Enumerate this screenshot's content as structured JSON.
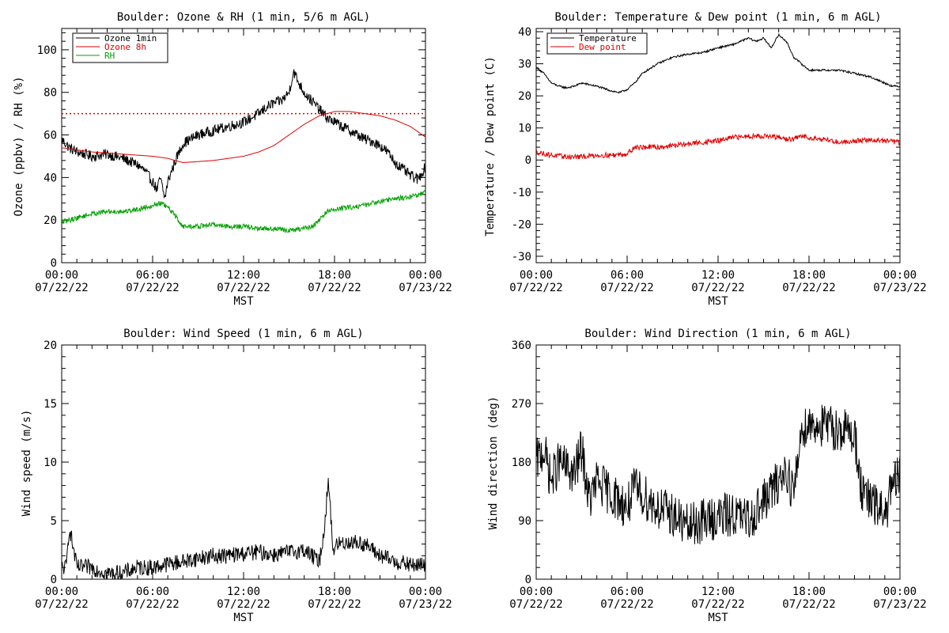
{
  "chart_data": [
    {
      "id": "ozone",
      "type": "line",
      "title": "Boulder: Ozone & RH (1 min, 5/6 m AGL)",
      "ylabel": "Ozone (ppbv) / RH (%)",
      "xlabel": "MST",
      "xlim": [
        0,
        24
      ],
      "ylim": [
        0,
        110
      ],
      "yticks": [
        0,
        20,
        40,
        60,
        80,
        100
      ],
      "xticks": [
        {
          "time": "00:00",
          "date": "07/22/22"
        },
        {
          "time": "06:00",
          "date": "07/22/22"
        },
        {
          "time": "12:00",
          "date": "07/22/22"
        },
        {
          "time": "18:00",
          "date": "07/22/22"
        },
        {
          "time": "00:00",
          "date": "07/23/22"
        }
      ],
      "reference_line": {
        "y": 70,
        "color": "#e00000",
        "style": "dotted"
      },
      "legend": {
        "placement": "top-left",
        "entries": [
          "Ozone 1min",
          "Ozone 8h",
          "RH"
        ]
      },
      "series": [
        {
          "name": "Ozone 1min",
          "color": "#000000",
          "noise": 2.5,
          "x": [
            0,
            0.5,
            1,
            2,
            3,
            4,
            5,
            5.5,
            6,
            6.3,
            6.5,
            6.8,
            7,
            7.5,
            8,
            9,
            10,
            11,
            12,
            12.5,
            13,
            13.5,
            14,
            14.5,
            15,
            15.3,
            15.6,
            16,
            16.5,
            17,
            17.5,
            18,
            19,
            20,
            20.5,
            21,
            21.5,
            22,
            22.5,
            23,
            23.5,
            24
          ],
          "y": [
            58,
            54,
            52,
            50,
            51,
            49,
            46,
            43,
            38,
            34,
            40,
            30,
            38,
            48,
            56,
            60,
            62,
            64,
            66,
            68,
            70,
            73,
            75,
            76,
            80,
            90,
            85,
            80,
            76,
            72,
            68,
            66,
            62,
            58,
            57,
            55,
            52,
            47,
            44,
            41,
            39,
            45
          ]
        },
        {
          "name": "Ozone 8h",
          "color": "#e00000",
          "noise": 0,
          "x": [
            0,
            2,
            4,
            6,
            7,
            8,
            9,
            10,
            11,
            12,
            13,
            14,
            15,
            16,
            17,
            18,
            19,
            20,
            21,
            22,
            23,
            24
          ],
          "y": [
            54,
            52,
            51,
            50,
            49,
            47,
            47.5,
            48,
            49,
            50,
            52,
            55,
            60,
            65,
            69,
            71,
            71,
            70,
            69,
            67,
            64,
            59
          ]
        },
        {
          "name": "RH",
          "color": "#00a000",
          "noise": 1.2,
          "x": [
            0,
            1,
            2,
            3,
            4,
            5,
            6,
            6.5,
            7,
            7.5,
            8,
            9,
            10,
            11,
            12,
            13,
            14,
            15,
            16,
            16.5,
            17,
            17.5,
            18,
            19,
            20,
            21,
            22,
            23,
            24
          ],
          "y": [
            19,
            21,
            23,
            24,
            24,
            25,
            27,
            28,
            26,
            22,
            17,
            17,
            18,
            17,
            17,
            16,
            16,
            15,
            16,
            17,
            20,
            24,
            25,
            26,
            27,
            29,
            30,
            31,
            33
          ]
        }
      ]
    },
    {
      "id": "temp",
      "type": "line",
      "title": "Boulder: Temperature & Dew point (1 min, 6 m AGL)",
      "ylabel": "Temperature / Dew point (C)",
      "xlabel": "MST",
      "xlim": [
        0,
        24
      ],
      "ylim": [
        -32,
        41
      ],
      "yticks": [
        -30,
        -20,
        -10,
        0,
        10,
        20,
        30,
        40
      ],
      "xticks": [
        {
          "time": "00:00",
          "date": "07/22/22"
        },
        {
          "time": "06:00",
          "date": "07/22/22"
        },
        {
          "time": "12:00",
          "date": "07/22/22"
        },
        {
          "time": "18:00",
          "date": "07/22/22"
        },
        {
          "time": "00:00",
          "date": "07/23/22"
        }
      ],
      "legend": {
        "placement": "top-left",
        "entries": [
          "Temperature",
          "Dew point"
        ]
      },
      "series": [
        {
          "name": "Temperature",
          "color": "#000000",
          "noise": 0.3,
          "x": [
            0,
            0.5,
            1,
            1.5,
            2,
            2.5,
            3,
            4,
            5,
            5.5,
            6,
            6.5,
            7,
            8,
            9,
            10,
            11,
            12,
            13,
            14,
            14.5,
            15,
            15.5,
            16,
            16.5,
            17,
            17.5,
            18,
            19,
            20,
            21,
            22,
            23,
            23.5,
            24
          ],
          "y": [
            29,
            27,
            24,
            23,
            22.5,
            23,
            24,
            23,
            21.5,
            21,
            22,
            24,
            27,
            30,
            32,
            33,
            33.5,
            35,
            36,
            38,
            37,
            38,
            35,
            39,
            37,
            32,
            30,
            28,
            28,
            28,
            27,
            26,
            24,
            23,
            23
          ]
        },
        {
          "name": "Dew point",
          "color": "#e00000",
          "noise": 0.8,
          "x": [
            0,
            1,
            2,
            3,
            4,
            5,
            6,
            6.5,
            7,
            8,
            9,
            10,
            11,
            12,
            13,
            14,
            15,
            16,
            16.5,
            17,
            17.5,
            18,
            19,
            20,
            21,
            22,
            23,
            24
          ],
          "y": [
            2.5,
            1.5,
            1,
            1,
            1.5,
            1.5,
            2,
            4,
            4,
            4,
            4.5,
            5,
            5.5,
            6,
            7,
            7.5,
            7.5,
            7,
            6.5,
            6.5,
            7.5,
            7,
            6.5,
            5.5,
            6,
            6.2,
            6,
            5.5
          ]
        }
      ]
    },
    {
      "id": "wspd",
      "type": "line",
      "title": "Boulder: Wind Speed (1 min, 6 m AGL)",
      "ylabel": "Wind speed (m/s)",
      "xlabel": "MST",
      "xlim": [
        0,
        24
      ],
      "ylim": [
        0,
        20
      ],
      "yticks": [
        0,
        5,
        10,
        15,
        20
      ],
      "xticks": [
        {
          "time": "00:00",
          "date": "07/22/22"
        },
        {
          "time": "06:00",
          "date": "07/22/22"
        },
        {
          "time": "12:00",
          "date": "07/22/22"
        },
        {
          "time": "18:00",
          "date": "07/22/22"
        },
        {
          "time": "00:00",
          "date": "07/23/22"
        }
      ],
      "series": [
        {
          "name": "Wind speed",
          "color": "#000000",
          "noise": 0.7,
          "x": [
            0,
            0.3,
            0.5,
            1,
            2,
            3,
            4,
            5,
            6,
            7,
            8,
            9,
            10,
            11,
            12,
            13,
            14,
            15,
            16,
            17,
            17.3,
            17.6,
            17.9,
            18.2,
            19,
            20,
            20.5,
            21,
            22,
            23,
            24
          ],
          "y": [
            1,
            1,
            4.5,
            1,
            1,
            0.5,
            0.5,
            1,
            1,
            1.3,
            1.5,
            1.8,
            2,
            2,
            2.2,
            2.3,
            2.1,
            2.3,
            2.5,
            1.5,
            4,
            8.5,
            2.5,
            3,
            3.2,
            3,
            2.5,
            2,
            1.5,
            1.2,
            1.2
          ]
        }
      ]
    },
    {
      "id": "wdir",
      "type": "line",
      "title": "Boulder: Wind Direction (1 min, 6 m AGL)",
      "ylabel": "Wind direction (deg)",
      "xlabel": "MST",
      "xlim": [
        0,
        24
      ],
      "ylim": [
        0,
        360
      ],
      "yticks": [
        0,
        90,
        180,
        270,
        360
      ],
      "xticks": [
        {
          "time": "00:00",
          "date": "07/22/22"
        },
        {
          "time": "06:00",
          "date": "07/22/22"
        },
        {
          "time": "12:00",
          "date": "07/22/22"
        },
        {
          "time": "18:00",
          "date": "07/22/22"
        },
        {
          "time": "00:00",
          "date": "07/23/22"
        }
      ],
      "series": [
        {
          "name": "Wind direction",
          "color": "#000000",
          "noise": 35,
          "x": [
            0,
            0.5,
            1,
            1.5,
            2,
            2.5,
            3,
            3.5,
            4,
            5,
            6,
            6.5,
            7,
            8,
            9,
            10,
            11,
            12,
            13,
            14,
            15,
            16,
            16.5,
            17,
            17.5,
            18,
            19,
            20,
            21,
            21.5,
            22,
            22.5,
            23,
            23.5,
            24
          ],
          "y": [
            180,
            200,
            150,
            180,
            170,
            160,
            200,
            120,
            150,
            130,
            110,
            140,
            130,
            110,
            100,
            80,
            90,
            95,
            100,
            90,
            120,
            150,
            170,
            130,
            230,
            240,
            235,
            230,
            225,
            130,
            120,
            110,
            100,
            140,
            160
          ]
        }
      ]
    }
  ]
}
